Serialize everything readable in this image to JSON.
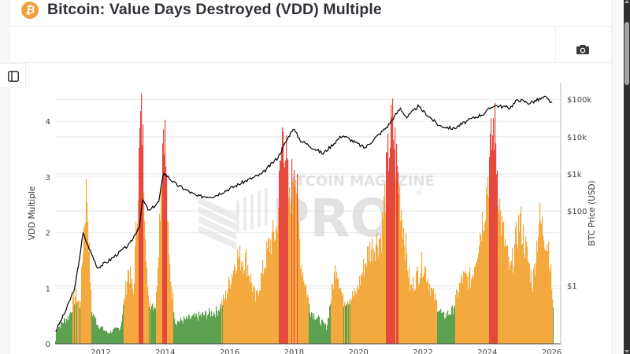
{
  "header": {
    "title": "Bitcoin: Value Days Destroyed (VDD) Multiple",
    "icon": "bitcoin-icon"
  },
  "toolbar": {
    "camera_icon": "camera-icon",
    "sidebar_icon": "sidebar-panel-icon"
  },
  "watermark": {
    "line1": "BITCOIN MAGAZINE",
    "line2": "PRO",
    "registered": "®"
  },
  "colors": {
    "green": "#5ba150",
    "orange": "#f3a93e",
    "red": "#e5483c",
    "price_line": "#000000",
    "bitcoin_icon": "#f0a03c"
  },
  "chart_data": {
    "type": "area",
    "title": "Bitcoin: Value Days Destroyed (VDD) Multiple",
    "xlabel": "",
    "ylabel": "VDD Multiple",
    "y2label": "BTC Price (USD)",
    "x_ticks": [
      "2012",
      "2014",
      "2016",
      "2018",
      "2020",
      "2022",
      "2024",
      "2026"
    ],
    "y_ticks": [
      "0",
      "1",
      "2",
      "3",
      "4"
    ],
    "y2_ticks": [
      "$1",
      "$100",
      "$1k",
      "$10k",
      "$100k"
    ],
    "ylim": [
      0,
      4.5
    ],
    "y2_scale": "log",
    "grid": true,
    "legend": "none",
    "color_bands": [
      {
        "range": "< ~0.75",
        "color": "green"
      },
      {
        "range": "~0.75 - ~3",
        "color": "orange"
      },
      {
        "range": "> ~3",
        "color": "red"
      }
    ],
    "series": [
      {
        "name": "VDD Multiple",
        "axis": "left",
        "points": [
          [
            2010.6,
            0.25
          ],
          [
            2010.8,
            0.4
          ],
          [
            2011.0,
            0.5
          ],
          [
            2011.2,
            0.9
          ],
          [
            2011.35,
            0.7
          ],
          [
            2011.45,
            2.0
          ],
          [
            2011.55,
            2.9
          ],
          [
            2011.7,
            0.6
          ],
          [
            2011.9,
            0.35
          ],
          [
            2012.2,
            0.2
          ],
          [
            2012.6,
            0.3
          ],
          [
            2012.85,
            1.4
          ],
          [
            2013.0,
            0.9
          ],
          [
            2013.25,
            4.45
          ],
          [
            2013.45,
            0.8
          ],
          [
            2013.7,
            0.7
          ],
          [
            2013.95,
            4.35
          ],
          [
            2014.1,
            1.55
          ],
          [
            2014.3,
            0.4
          ],
          [
            2015.0,
            0.5
          ],
          [
            2015.6,
            0.6
          ],
          [
            2015.85,
            0.85
          ],
          [
            2016.2,
            1.6
          ],
          [
            2016.5,
            1.55
          ],
          [
            2016.8,
            0.8
          ],
          [
            2017.2,
            1.8
          ],
          [
            2017.45,
            2.1
          ],
          [
            2017.55,
            3.1
          ],
          [
            2017.65,
            4.1
          ],
          [
            2017.85,
            2.5
          ],
          [
            2018.0,
            3.6
          ],
          [
            2018.2,
            1.5
          ],
          [
            2018.5,
            0.6
          ],
          [
            2019.0,
            0.3
          ],
          [
            2019.3,
            1.5
          ],
          [
            2019.5,
            0.8
          ],
          [
            2019.9,
            0.9
          ],
          [
            2020.3,
            1.7
          ],
          [
            2020.7,
            2.0
          ],
          [
            2020.95,
            3.7
          ],
          [
            2021.05,
            4.0
          ],
          [
            2021.3,
            2.6
          ],
          [
            2021.6,
            1.0
          ],
          [
            2022.0,
            1.5
          ],
          [
            2022.3,
            0.9
          ],
          [
            2022.6,
            0.5
          ],
          [
            2022.9,
            0.6
          ],
          [
            2023.2,
            1.2
          ],
          [
            2023.5,
            1.2
          ],
          [
            2023.9,
            2.5
          ],
          [
            2024.2,
            4.1
          ],
          [
            2024.4,
            2.3
          ],
          [
            2024.7,
            1.3
          ],
          [
            2025.0,
            2.3
          ],
          [
            2025.4,
            1.1
          ],
          [
            2025.6,
            2.3
          ],
          [
            2025.9,
            1.8
          ],
          [
            2026.05,
            0.5
          ]
        ]
      },
      {
        "name": "BTC Price (USD)",
        "axis": "right",
        "points": [
          [
            2010.6,
            0.06
          ],
          [
            2010.9,
            0.2
          ],
          [
            2011.2,
            0.9
          ],
          [
            2011.45,
            25
          ],
          [
            2011.6,
            12
          ],
          [
            2011.9,
            3
          ],
          [
            2012.3,
            5
          ],
          [
            2012.9,
            13
          ],
          [
            2013.2,
            40
          ],
          [
            2013.3,
            200
          ],
          [
            2013.5,
            100
          ],
          [
            2013.8,
            180
          ],
          [
            2013.95,
            1100
          ],
          [
            2014.3,
            550
          ],
          [
            2015.0,
            250
          ],
          [
            2015.5,
            250
          ],
          [
            2016.0,
            400
          ],
          [
            2016.5,
            650
          ],
          [
            2017.0,
            1000
          ],
          [
            2017.5,
            2800
          ],
          [
            2017.97,
            17000
          ],
          [
            2018.2,
            8000
          ],
          [
            2018.9,
            3500
          ],
          [
            2019.5,
            11000
          ],
          [
            2020.2,
            5000
          ],
          [
            2020.9,
            19000
          ],
          [
            2021.3,
            58000
          ],
          [
            2021.5,
            33000
          ],
          [
            2021.85,
            65000
          ],
          [
            2022.5,
            20000
          ],
          [
            2022.95,
            16500
          ],
          [
            2023.5,
            30000
          ],
          [
            2023.9,
            42000
          ],
          [
            2024.2,
            70000
          ],
          [
            2024.7,
            60000
          ],
          [
            2024.95,
            100000
          ],
          [
            2025.3,
            80000
          ],
          [
            2025.8,
            115000
          ],
          [
            2026.05,
            75000
          ]
        ]
      }
    ]
  }
}
